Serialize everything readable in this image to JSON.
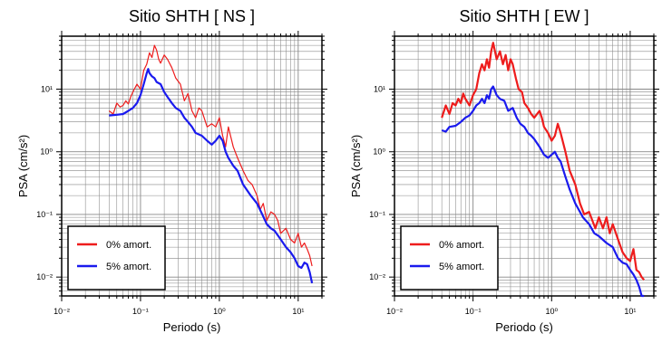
{
  "chart_data": [
    {
      "type": "line",
      "title": "Sitio SHTH [ NS ]",
      "xlabel": "Periodo (s)",
      "ylabel": "PSA (cm/s²)",
      "xscale": "log",
      "yscale": "log",
      "xlim": [
        0.01,
        20
      ],
      "ylim": [
        0.005,
        70
      ],
      "x_ticks": [
        "10⁻²",
        "10⁻¹",
        "10⁰",
        "10¹"
      ],
      "y_ticks": [
        "10⁻²",
        "10⁻¹",
        "10⁰",
        "10¹"
      ],
      "grid": true,
      "legend": "bottom-left",
      "series": [
        {
          "name": "0% amort.",
          "color": "#ee1c1c",
          "points": [
            [
              0.04,
              4.5
            ],
            [
              0.045,
              4.0
            ],
            [
              0.05,
              6.0
            ],
            [
              0.055,
              5.2
            ],
            [
              0.06,
              5.5
            ],
            [
              0.065,
              6.5
            ],
            [
              0.07,
              5.8
            ],
            [
              0.075,
              7.5
            ],
            [
              0.08,
              9.0
            ],
            [
              0.09,
              12.0
            ],
            [
              0.1,
              10.0
            ],
            [
              0.11,
              20.0
            ],
            [
              0.12,
              25.0
            ],
            [
              0.13,
              38.0
            ],
            [
              0.14,
              32.0
            ],
            [
              0.15,
              50.0
            ],
            [
              0.16,
              42.0
            ],
            [
              0.17,
              30.0
            ],
            [
              0.18,
              26.0
            ],
            [
              0.2,
              35.0
            ],
            [
              0.22,
              30.0
            ],
            [
              0.25,
              22.0
            ],
            [
              0.28,
              15.0
            ],
            [
              0.32,
              12.0
            ],
            [
              0.36,
              6.5
            ],
            [
              0.4,
              8.5
            ],
            [
              0.45,
              4.5
            ],
            [
              0.5,
              3.5
            ],
            [
              0.55,
              5.0
            ],
            [
              0.6,
              4.5
            ],
            [
              0.7,
              2.5
            ],
            [
              0.8,
              2.8
            ],
            [
              0.9,
              2.5
            ],
            [
              1.0,
              3.5
            ],
            [
              1.1,
              1.8
            ],
            [
              1.2,
              1.2
            ],
            [
              1.3,
              2.5
            ],
            [
              1.5,
              1.2
            ],
            [
              1.7,
              0.8
            ],
            [
              2.0,
              0.5
            ],
            [
              2.3,
              0.35
            ],
            [
              2.6,
              0.3
            ],
            [
              3.0,
              0.2
            ],
            [
              3.3,
              0.12
            ],
            [
              3.6,
              0.15
            ],
            [
              4.0,
              0.08
            ],
            [
              4.5,
              0.11
            ],
            [
              5.0,
              0.1
            ],
            [
              5.5,
              0.08
            ],
            [
              6.0,
              0.05
            ],
            [
              7.0,
              0.06
            ],
            [
              8.0,
              0.04
            ],
            [
              9.0,
              0.035
            ],
            [
              10.0,
              0.05
            ],
            [
              11.0,
              0.03
            ],
            [
              12.0,
              0.035
            ],
            [
              13.0,
              0.028
            ],
            [
              14.0,
              0.022
            ],
            [
              15.0,
              0.015
            ]
          ]
        },
        {
          "name": "5% amort.",
          "color": "#1a1aee",
          "points": [
            [
              0.04,
              3.8
            ],
            [
              0.05,
              3.9
            ],
            [
              0.06,
              4.0
            ],
            [
              0.07,
              4.5
            ],
            [
              0.08,
              5.0
            ],
            [
              0.09,
              6.0
            ],
            [
              0.1,
              8.0
            ],
            [
              0.11,
              12.0
            ],
            [
              0.12,
              18.0
            ],
            [
              0.125,
              21.0
            ],
            [
              0.13,
              18.0
            ],
            [
              0.14,
              16.0
            ],
            [
              0.15,
              15.0
            ],
            [
              0.16,
              13.0
            ],
            [
              0.18,
              12.0
            ],
            [
              0.2,
              9.0
            ],
            [
              0.22,
              7.5
            ],
            [
              0.25,
              6.0
            ],
            [
              0.28,
              5.0
            ],
            [
              0.32,
              4.5
            ],
            [
              0.36,
              3.5
            ],
            [
              0.4,
              3.0
            ],
            [
              0.45,
              2.5
            ],
            [
              0.5,
              2.0
            ],
            [
              0.6,
              1.8
            ],
            [
              0.7,
              1.5
            ],
            [
              0.8,
              1.3
            ],
            [
              0.9,
              1.5
            ],
            [
              1.0,
              1.8
            ],
            [
              1.1,
              1.5
            ],
            [
              1.2,
              1.0
            ],
            [
              1.3,
              0.8
            ],
            [
              1.5,
              0.6
            ],
            [
              1.7,
              0.5
            ],
            [
              2.0,
              0.3
            ],
            [
              2.5,
              0.2
            ],
            [
              3.0,
              0.15
            ],
            [
              3.5,
              0.1
            ],
            [
              4.0,
              0.07
            ],
            [
              4.5,
              0.06
            ],
            [
              5.0,
              0.055
            ],
            [
              6.0,
              0.04
            ],
            [
              7.0,
              0.03
            ],
            [
              8.0,
              0.025
            ],
            [
              9.0,
              0.02
            ],
            [
              10.0,
              0.015
            ],
            [
              11.0,
              0.014
            ],
            [
              12.0,
              0.017
            ],
            [
              13.0,
              0.016
            ],
            [
              14.0,
              0.012
            ],
            [
              15.0,
              0.008
            ]
          ]
        }
      ]
    },
    {
      "type": "line",
      "title": "Sitio SHTH [ EW ]",
      "xlabel": "Periodo (s)",
      "ylabel": "PSA (cm/s²)",
      "xscale": "log",
      "yscale": "log",
      "xlim": [
        0.01,
        20
      ],
      "ylim": [
        0.005,
        70
      ],
      "x_ticks": [
        "10⁻²",
        "10⁻¹",
        "10⁰",
        "10¹"
      ],
      "y_ticks": [
        "10⁻²",
        "10⁻¹",
        "10⁰",
        "10¹"
      ],
      "grid": true,
      "legend": "bottom-left",
      "series": [
        {
          "name": "0% amort.",
          "color": "#ee1c1c",
          "points": [
            [
              0.04,
              3.5
            ],
            [
              0.045,
              5.5
            ],
            [
              0.05,
              4.0
            ],
            [
              0.055,
              6.0
            ],
            [
              0.06,
              5.5
            ],
            [
              0.065,
              7.0
            ],
            [
              0.07,
              6.0
            ],
            [
              0.075,
              8.5
            ],
            [
              0.08,
              7.0
            ],
            [
              0.09,
              5.5
            ],
            [
              0.1,
              8.0
            ],
            [
              0.11,
              10.0
            ],
            [
              0.12,
              18.0
            ],
            [
              0.13,
              25.0
            ],
            [
              0.14,
              20.0
            ],
            [
              0.15,
              30.0
            ],
            [
              0.16,
              22.0
            ],
            [
              0.17,
              40.0
            ],
            [
              0.18,
              55.0
            ],
            [
              0.2,
              30.0
            ],
            [
              0.22,
              40.0
            ],
            [
              0.24,
              25.0
            ],
            [
              0.26,
              35.0
            ],
            [
              0.28,
              20.0
            ],
            [
              0.3,
              30.0
            ],
            [
              0.32,
              25.0
            ],
            [
              0.35,
              15.0
            ],
            [
              0.38,
              10.0
            ],
            [
              0.42,
              9.0
            ],
            [
              0.45,
              6.0
            ],
            [
              0.5,
              5.0
            ],
            [
              0.55,
              4.0
            ],
            [
              0.6,
              3.5
            ],
            [
              0.7,
              4.5
            ],
            [
              0.75,
              3.5
            ],
            [
              0.8,
              2.5
            ],
            [
              0.9,
              2.0
            ],
            [
              1.0,
              1.5
            ],
            [
              1.1,
              1.8
            ],
            [
              1.2,
              2.8
            ],
            [
              1.3,
              2.0
            ],
            [
              1.5,
              1.0
            ],
            [
              1.7,
              0.5
            ],
            [
              2.0,
              0.3
            ],
            [
              2.3,
              0.15
            ],
            [
              2.6,
              0.1
            ],
            [
              3.0,
              0.11
            ],
            [
              3.3,
              0.08
            ],
            [
              3.6,
              0.06
            ],
            [
              4.0,
              0.09
            ],
            [
              4.5,
              0.06
            ],
            [
              5.0,
              0.09
            ],
            [
              5.5,
              0.05
            ],
            [
              6.0,
              0.07
            ],
            [
              7.0,
              0.04
            ],
            [
              8.0,
              0.025
            ],
            [
              9.0,
              0.02
            ],
            [
              10.0,
              0.018
            ],
            [
              11.0,
              0.028
            ],
            [
              12.0,
              0.013
            ],
            [
              13.0,
              0.012
            ],
            [
              14.0,
              0.01
            ],
            [
              15.0,
              0.009
            ]
          ]
        },
        {
          "name": "5% amort.",
          "color": "#1a1aee",
          "points": [
            [
              0.04,
              2.2
            ],
            [
              0.045,
              2.1
            ],
            [
              0.05,
              2.5
            ],
            [
              0.06,
              2.6
            ],
            [
              0.07,
              3.0
            ],
            [
              0.08,
              3.5
            ],
            [
              0.09,
              3.8
            ],
            [
              0.1,
              4.5
            ],
            [
              0.11,
              5.5
            ],
            [
              0.12,
              6.0
            ],
            [
              0.13,
              7.0
            ],
            [
              0.14,
              6.0
            ],
            [
              0.15,
              8.0
            ],
            [
              0.16,
              7.0
            ],
            [
              0.17,
              10.0
            ],
            [
              0.18,
              11.0
            ],
            [
              0.2,
              8.0
            ],
            [
              0.22,
              7.0
            ],
            [
              0.25,
              6.5
            ],
            [
              0.28,
              4.5
            ],
            [
              0.32,
              5.0
            ],
            [
              0.36,
              3.5
            ],
            [
              0.4,
              2.8
            ],
            [
              0.45,
              2.5
            ],
            [
              0.5,
              2.0
            ],
            [
              0.55,
              1.8
            ],
            [
              0.6,
              1.6
            ],
            [
              0.7,
              1.2
            ],
            [
              0.8,
              0.9
            ],
            [
              0.9,
              0.8
            ],
            [
              1.0,
              0.9
            ],
            [
              1.1,
              1.0
            ],
            [
              1.2,
              0.8
            ],
            [
              1.3,
              0.7
            ],
            [
              1.5,
              0.4
            ],
            [
              1.7,
              0.25
            ],
            [
              2.0,
              0.15
            ],
            [
              2.5,
              0.09
            ],
            [
              3.0,
              0.07
            ],
            [
              3.5,
              0.05
            ],
            [
              4.0,
              0.045
            ],
            [
              5.0,
              0.035
            ],
            [
              6.0,
              0.03
            ],
            [
              7.0,
              0.02
            ],
            [
              8.0,
              0.017
            ],
            [
              9.0,
              0.016
            ],
            [
              10.0,
              0.013
            ],
            [
              11.0,
              0.011
            ],
            [
              12.0,
              0.009
            ],
            [
              13.0,
              0.007
            ],
            [
              14.0,
              0.005
            ],
            [
              15.0,
              0.005
            ]
          ]
        }
      ]
    }
  ]
}
